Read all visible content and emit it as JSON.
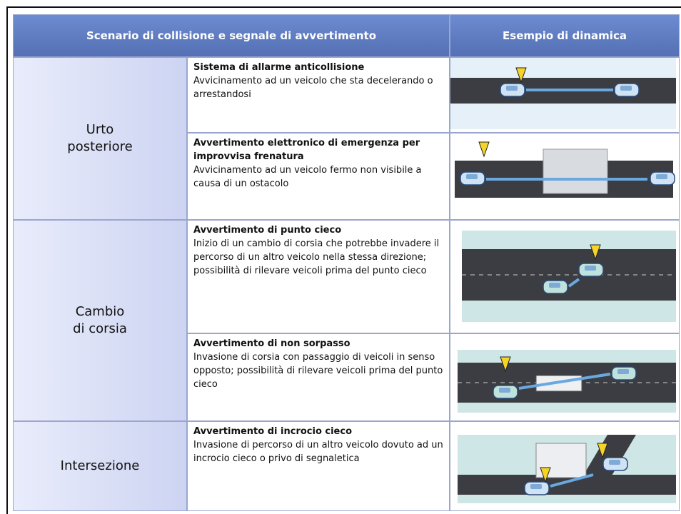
{
  "header": {
    "columns": [
      "Scenario di collisione e segnale di avvertimento",
      "Esempio di dinamica"
    ]
  },
  "groups": [
    {
      "label": [
        "Urto",
        "posteriore"
      ],
      "rows": [
        {
          "title": "Sistema di allarme anticollisione",
          "description": "Avvicinamento ad un veicolo che sta decelerando o arrestandosi"
        },
        {
          "title": "Avvertimento elettronico di emergenza per improvvisa frenatura",
          "description": "Avvicinamento ad un veicolo fermo non visibile a causa di un ostacolo"
        }
      ]
    },
    {
      "label": [
        "Cambio",
        "di corsia"
      ],
      "rows": [
        {
          "title": "Avvertimento di punto cieco",
          "description": "Inizio di un cambio di corsia che potrebbe invadere il percorso di un altro veicolo nella stessa direzione; possibilità di rilevare veicoli prima del punto cieco"
        },
        {
          "title": "Avvertimento di non sorpasso",
          "description": "Invasione di corsia con passaggio di veicoli in senso opposto; possibilità di rilevare veicoli prima del punto cieco"
        }
      ]
    },
    {
      "label": [
        "Intersezione"
      ],
      "rows": [
        {
          "title": "Avvertimento di incrocio cieco",
          "description": "Invasione di percorso di un altro veicolo dovuto ad un incrocio cieco o privo di segnaletica"
        }
      ]
    }
  ]
}
